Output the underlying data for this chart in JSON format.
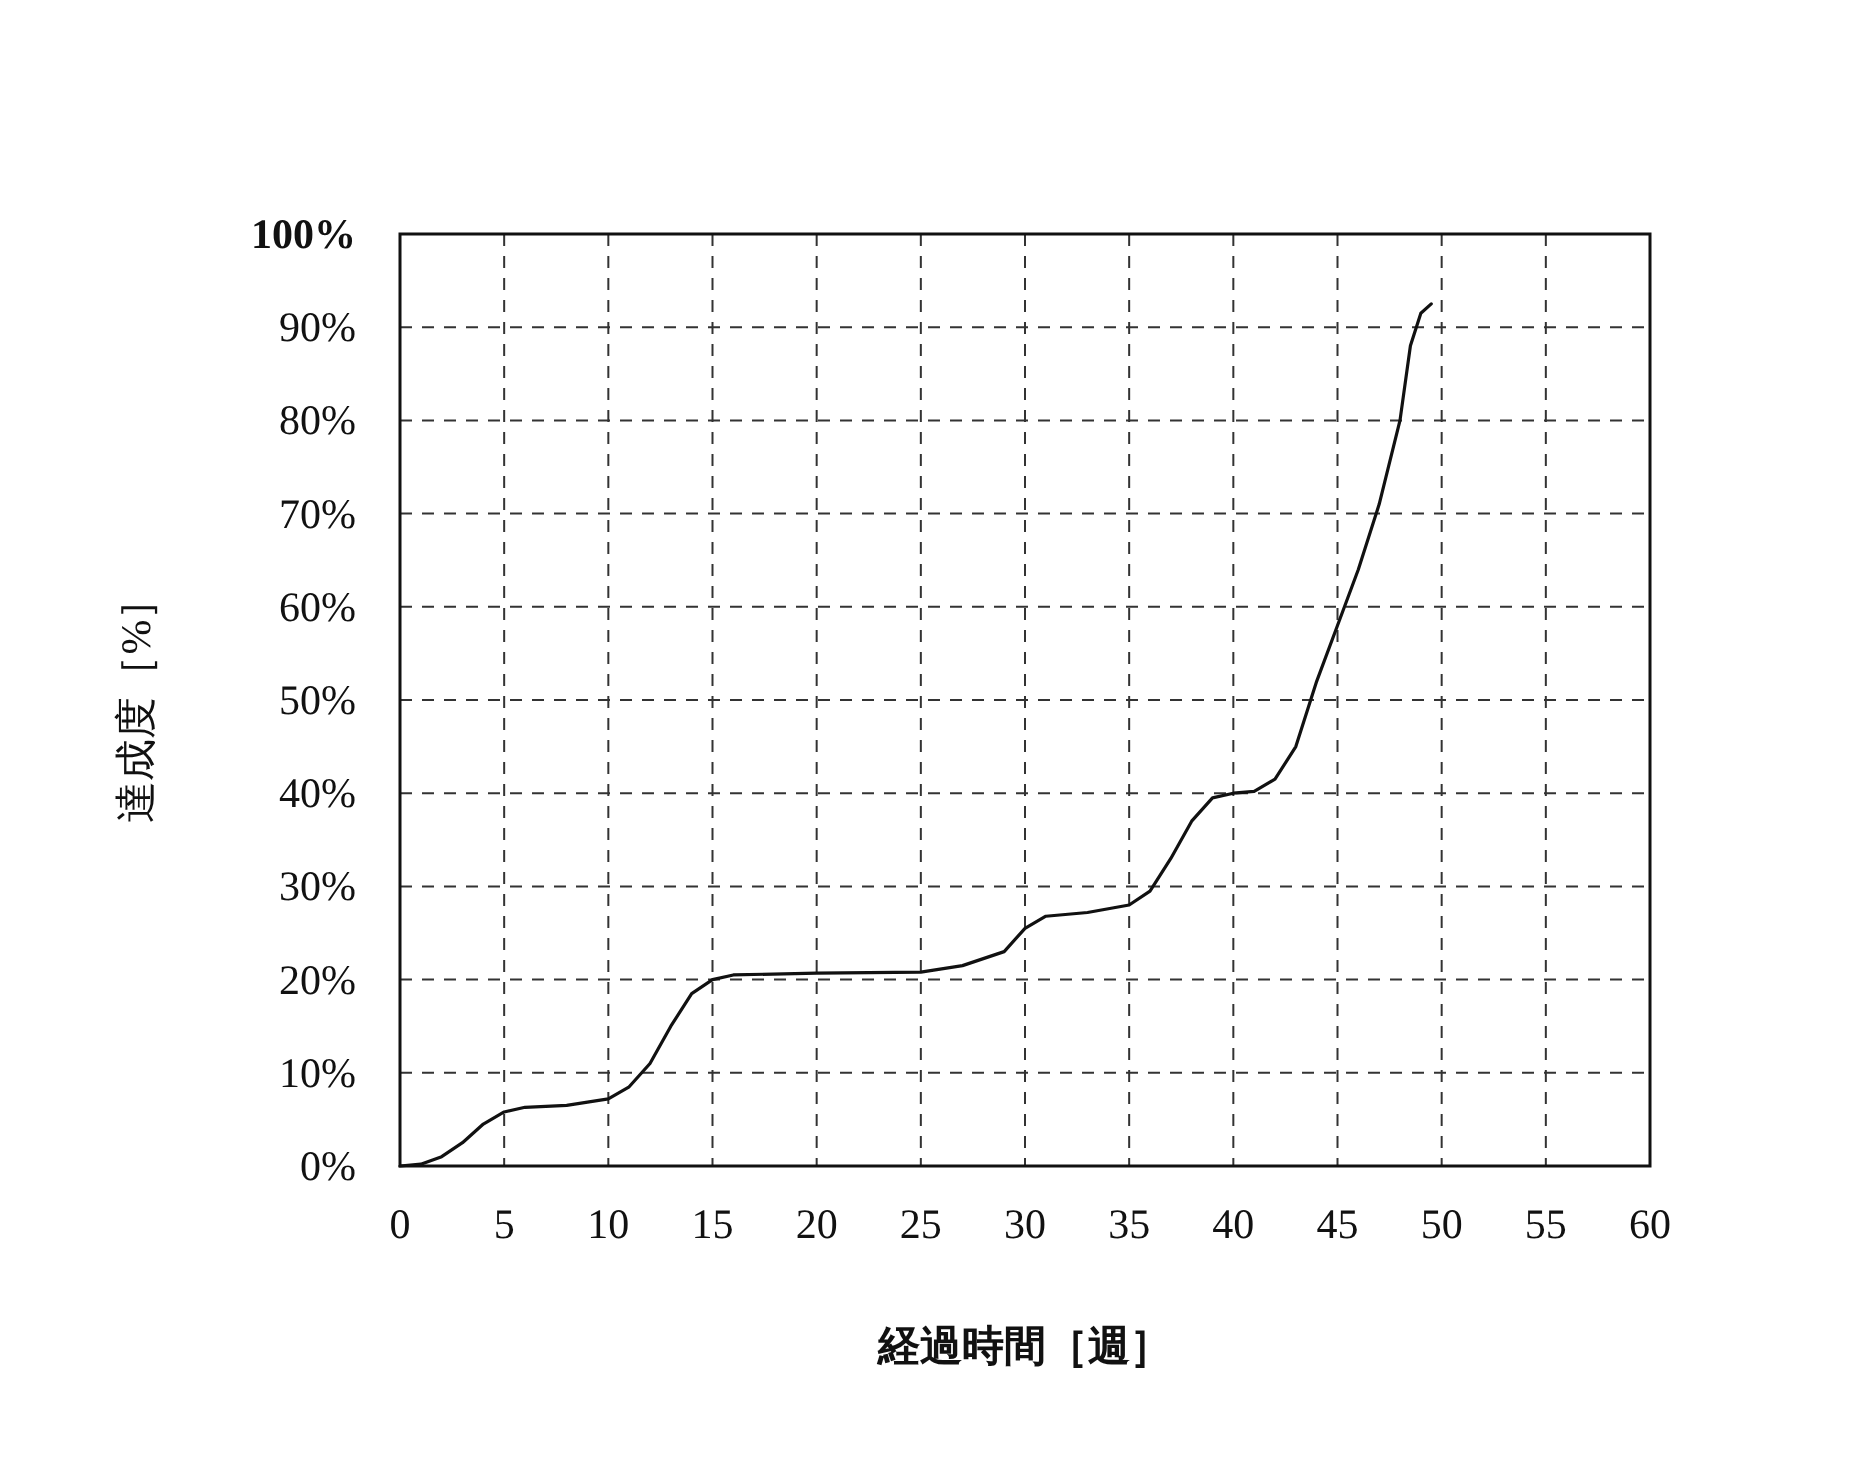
{
  "chart_data": {
    "type": "line",
    "xlabel": "経過時間［週］",
    "ylabel": "達成度［%］",
    "x": [
      0,
      1,
      2,
      3,
      4,
      5,
      6,
      8,
      10,
      11,
      12,
      13,
      14,
      15,
      16,
      20,
      25,
      27,
      29,
      30,
      31,
      33,
      35,
      36,
      37,
      38,
      39,
      40,
      41,
      42,
      43,
      44,
      45,
      46,
      47,
      48,
      48.5,
      49,
      49.5
    ],
    "series": [
      {
        "color": "#111111",
        "values": [
          0,
          0.2,
          1,
          2.5,
          4.5,
          5.8,
          6.3,
          6.5,
          7.2,
          8.5,
          11,
          15,
          18.5,
          20,
          20.5,
          20.7,
          20.8,
          21.5,
          23,
          25.5,
          26.8,
          27.2,
          28,
          29.5,
          33,
          37,
          39.5,
          40,
          40.2,
          41.5,
          45,
          52,
          58,
          64,
          71,
          80,
          88,
          91.5,
          92.5
        ]
      }
    ],
    "xlim": [
      0,
      60
    ],
    "xticks": [
      0,
      5,
      10,
      15,
      20,
      25,
      30,
      35,
      40,
      45,
      50,
      55,
      60
    ],
    "ylim": [
      0,
      100
    ],
    "yticks": [
      {
        "value": 0,
        "label": "0%"
      },
      {
        "value": 10,
        "label": "10%"
      },
      {
        "value": 20,
        "label": "20%"
      },
      {
        "value": 30,
        "label": "30%"
      },
      {
        "value": 40,
        "label": "40%"
      },
      {
        "value": 50,
        "label": "50%"
      },
      {
        "value": 60,
        "label": "60%"
      },
      {
        "value": 70,
        "label": "70%"
      },
      {
        "value": 80,
        "label": "80%"
      },
      {
        "value": 90,
        "label": "90%"
      },
      {
        "value": 100,
        "label": "100%"
      }
    ],
    "grid": true,
    "marker": "none",
    "line_style": "solid"
  }
}
